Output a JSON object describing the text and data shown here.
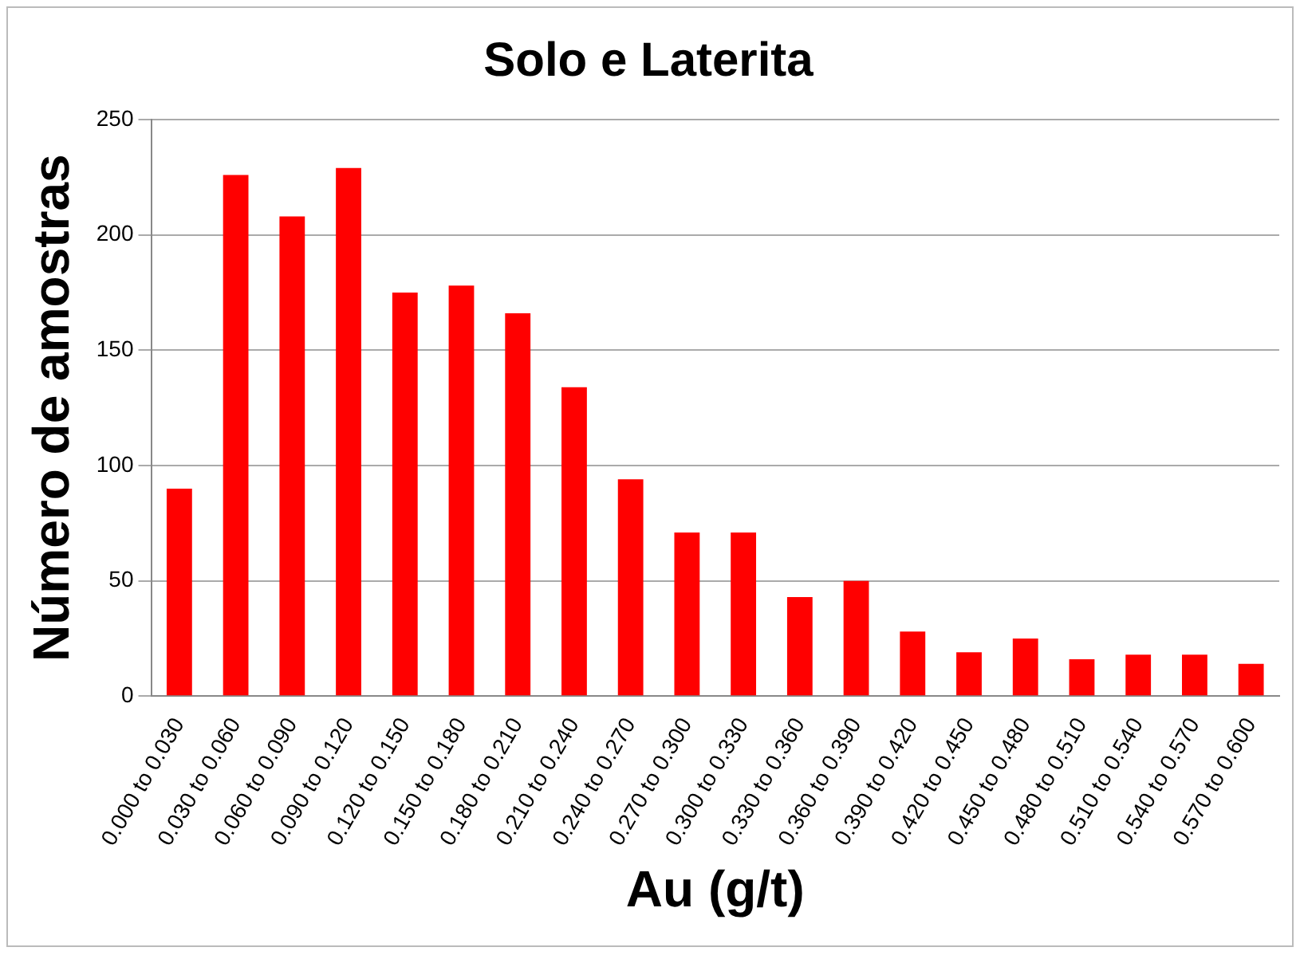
{
  "chart_data": {
    "type": "bar",
    "title": "Solo e Laterita",
    "xlabel": "Au (g/t)",
    "ylabel": "Número de amostras",
    "categories": [
      "0.000 to 0.030",
      "0.030 to 0.060",
      "0.060 to 0.090",
      "0.090 to 0.120",
      "0.120 to 0.150",
      "0.150 to 0.180",
      "0.180 to 0.210",
      "0.210 to 0.240",
      "0.240 to 0.270",
      "0.270 to 0.300",
      "0.300 to 0.330",
      "0.330 to 0.360",
      "0.360 to 0.390",
      "0.390 to 0.420",
      "0.420 to 0.450",
      "0.450 to 0.480",
      "0.480 to 0.510",
      "0.510 to 0.540",
      "0.540 to 0.570",
      "0.570 to 0.600"
    ],
    "values": [
      90,
      226,
      208,
      229,
      175,
      178,
      166,
      134,
      94,
      71,
      71,
      43,
      50,
      28,
      19,
      25,
      16,
      18,
      18,
      14
    ],
    "color": "#ff0000",
    "ylim": [
      0,
      250
    ],
    "yticks": [
      0,
      50,
      100,
      150,
      200,
      250
    ],
    "grid": "y",
    "legend": false
  }
}
